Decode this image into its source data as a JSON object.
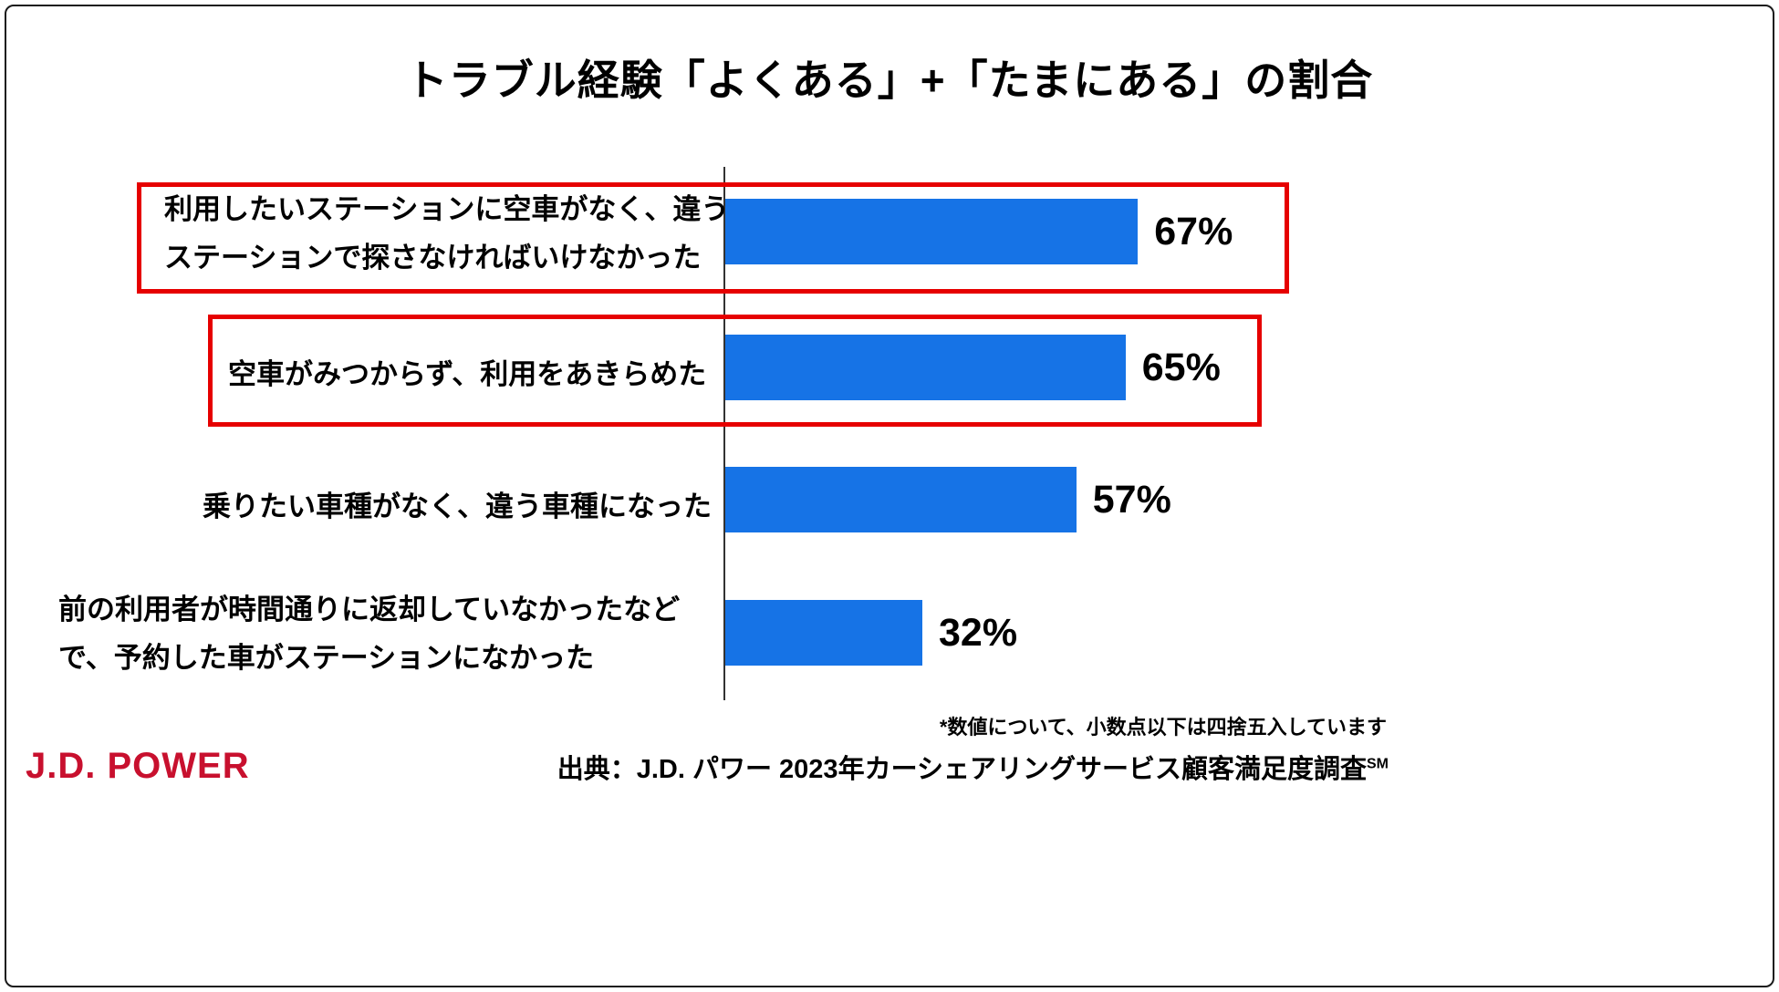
{
  "title": "トラブル経験「よくある」+「たまにある」の割合",
  "chart_data": {
    "type": "bar",
    "orientation": "horizontal",
    "title": "トラブル経験「よくある」+「たまにある」の割合",
    "categories": [
      "利用したいステーションに空車がなく、違う\nステーションで探さなければいけなかった",
      "空車がみつからず、利用をあきらめた",
      "乗りたい車種がなく、違う車種になった",
      "前の利用者が時間通りに返却していなかったなど\nで、予約した車がステーションになかった"
    ],
    "values": [
      67,
      65,
      57,
      32
    ],
    "value_labels": [
      "67%",
      "65%",
      "57%",
      "32%"
    ],
    "highlighted_categories": [
      0,
      1
    ],
    "xlim": [
      0,
      100
    ],
    "grid": false,
    "legend": "none",
    "bar_color": "#1673e6",
    "highlight_box_color": "#e60000"
  },
  "footnote": "*数値について、小数点以下は四捨五入しています",
  "source": {
    "label": "出典：J.D. パワー 2023年カーシェアリングサービス顧客満足度調査",
    "trademark": "SM"
  },
  "logo_text": "J.D. POWER"
}
